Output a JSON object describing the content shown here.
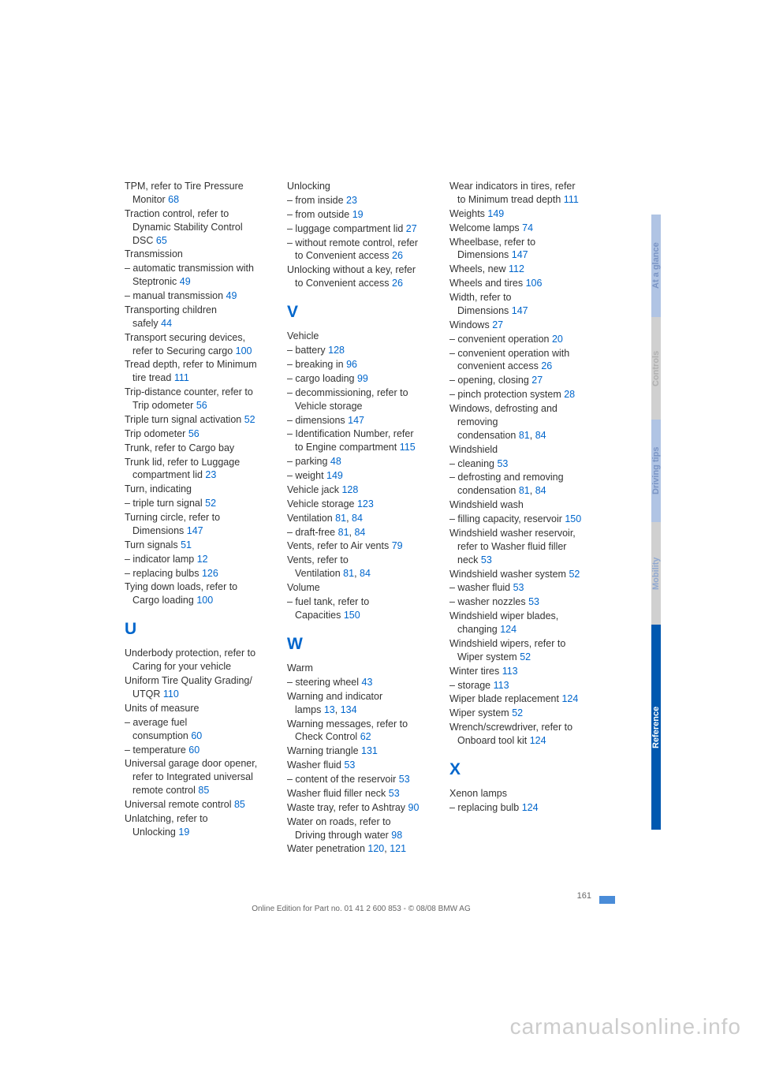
{
  "columns": [
    {
      "blocks": [
        {
          "type": "entries",
          "items": [
            {
              "lines": [
                "TPM, refer to Tire Pressure",
                "Monitor "
              ],
              "ref": "68"
            },
            {
              "lines": [
                "Traction control, refer to",
                "Dynamic Stability Control",
                "DSC "
              ],
              "ref": "65"
            },
            {
              "lines": [
                "Transmission"
              ]
            },
            {
              "lines": [
                "– automatic transmission with",
                "Steptronic "
              ],
              "ref": "49",
              "sub": true
            },
            {
              "lines": [
                "– manual transmission "
              ],
              "ref": "49",
              "sub": true
            },
            {
              "lines": [
                "Transporting children",
                "safely "
              ],
              "ref": "44"
            },
            {
              "lines": [
                "Transport securing devices,",
                "refer to Securing cargo "
              ],
              "ref": "100"
            },
            {
              "lines": [
                "Tread depth, refer to Minimum",
                "tire tread "
              ],
              "ref": "111"
            },
            {
              "lines": [
                "Trip-distance counter, refer to",
                "Trip odometer "
              ],
              "ref": "56"
            },
            {
              "lines": [
                "Triple turn signal activation "
              ],
              "ref": "52"
            },
            {
              "lines": [
                "Trip odometer "
              ],
              "ref": "56"
            },
            {
              "lines": [
                "Trunk, refer to Cargo bay"
              ]
            },
            {
              "lines": [
                "Trunk lid, refer to Luggage",
                "compartment lid "
              ],
              "ref": "23"
            },
            {
              "lines": [
                "Turn, indicating"
              ]
            },
            {
              "lines": [
                "– triple turn signal "
              ],
              "ref": "52",
              "sub": true
            },
            {
              "lines": [
                "Turning circle, refer to",
                "Dimensions "
              ],
              "ref": "147"
            },
            {
              "lines": [
                "Turn signals "
              ],
              "ref": "51"
            },
            {
              "lines": [
                "– indicator lamp "
              ],
              "ref": "12",
              "sub": true
            },
            {
              "lines": [
                "– replacing bulbs "
              ],
              "ref": "126",
              "sub": true
            },
            {
              "lines": [
                "Tying down loads, refer to",
                "Cargo loading "
              ],
              "ref": "100"
            }
          ]
        },
        {
          "type": "letter",
          "text": "U"
        },
        {
          "type": "entries",
          "items": [
            {
              "lines": [
                "Underbody protection, refer to",
                "Caring for your vehicle"
              ]
            },
            {
              "lines": [
                "Uniform Tire Quality Grading/",
                "UTQR "
              ],
              "ref": "110"
            },
            {
              "lines": [
                "Units of measure"
              ]
            },
            {
              "lines": [
                "– average fuel",
                "consumption "
              ],
              "ref": "60",
              "sub": true
            },
            {
              "lines": [
                "– temperature "
              ],
              "ref": "60",
              "sub": true
            },
            {
              "lines": [
                "Universal garage door opener,",
                "refer to Integrated universal",
                "remote control "
              ],
              "ref": "85"
            },
            {
              "lines": [
                "Universal remote control "
              ],
              "ref": "85"
            },
            {
              "lines": [
                "Unlatching, refer to",
                "Unlocking "
              ],
              "ref": "19"
            }
          ]
        }
      ]
    },
    {
      "blocks": [
        {
          "type": "entries",
          "items": [
            {
              "lines": [
                "Unlocking"
              ]
            },
            {
              "lines": [
                "– from inside "
              ],
              "ref": "23",
              "sub": true
            },
            {
              "lines": [
                "– from outside "
              ],
              "ref": "19",
              "sub": true
            },
            {
              "lines": [
                "– luggage compartment lid "
              ],
              "ref": "27",
              "sub": true
            },
            {
              "lines": [
                "– without remote control, refer",
                "to Convenient access "
              ],
              "ref": "26",
              "sub": true
            },
            {
              "lines": [
                "Unlocking without a key, refer",
                "to Convenient access "
              ],
              "ref": "26"
            }
          ]
        },
        {
          "type": "letter",
          "text": "V"
        },
        {
          "type": "entries",
          "items": [
            {
              "lines": [
                "Vehicle"
              ]
            },
            {
              "lines": [
                "– battery "
              ],
              "ref": "128",
              "sub": true
            },
            {
              "lines": [
                "– breaking in "
              ],
              "ref": "96",
              "sub": true
            },
            {
              "lines": [
                "– cargo loading "
              ],
              "ref": "99",
              "sub": true
            },
            {
              "lines": [
                "– decommissioning, refer to",
                "Vehicle storage"
              ],
              "sub": true
            },
            {
              "lines": [
                "– dimensions "
              ],
              "ref": "147",
              "sub": true
            },
            {
              "lines": [
                "– Identification Number, refer",
                "to Engine compartment "
              ],
              "ref": "115",
              "sub": true
            },
            {
              "lines": [
                "– parking "
              ],
              "ref": "48",
              "sub": true
            },
            {
              "lines": [
                "– weight "
              ],
              "ref": "149",
              "sub": true
            },
            {
              "lines": [
                "Vehicle jack "
              ],
              "ref": "128"
            },
            {
              "lines": [
                "Vehicle storage "
              ],
              "ref": "123"
            },
            {
              "lines": [
                "Ventilation "
              ],
              "ref": "81",
              "ref2": "84"
            },
            {
              "lines": [
                "– draft-free "
              ],
              "ref": "81",
              "ref2": "84",
              "sub": true
            },
            {
              "lines": [
                "Vents, refer to Air vents "
              ],
              "ref": "79"
            },
            {
              "lines": [
                "Vents, refer to",
                "Ventilation "
              ],
              "ref": "81",
              "ref2": "84"
            },
            {
              "lines": [
                "Volume"
              ]
            },
            {
              "lines": [
                "– fuel tank, refer to",
                "Capacities "
              ],
              "ref": "150",
              "sub": true
            }
          ]
        },
        {
          "type": "letter",
          "text": "W"
        },
        {
          "type": "entries",
          "items": [
            {
              "lines": [
                "Warm"
              ]
            },
            {
              "lines": [
                "– steering wheel "
              ],
              "ref": "43",
              "sub": true
            },
            {
              "lines": [
                "Warning and indicator",
                "lamps "
              ],
              "ref": "13",
              "ref2": "134"
            },
            {
              "lines": [
                "Warning messages, refer to",
                "Check Control "
              ],
              "ref": "62"
            },
            {
              "lines": [
                "Warning triangle "
              ],
              "ref": "131"
            },
            {
              "lines": [
                "Washer fluid "
              ],
              "ref": "53"
            },
            {
              "lines": [
                "– content of the reservoir "
              ],
              "ref": "53",
              "sub": true
            },
            {
              "lines": [
                "Washer fluid filler neck "
              ],
              "ref": "53"
            },
            {
              "lines": [
                "Waste tray, refer to Ashtray "
              ],
              "ref": "90"
            },
            {
              "lines": [
                "Water on roads, refer to",
                "Driving through water "
              ],
              "ref": "98"
            },
            {
              "lines": [
                "Water penetration "
              ],
              "ref": "120",
              "ref2": "121"
            }
          ]
        }
      ]
    },
    {
      "blocks": [
        {
          "type": "entries",
          "items": [
            {
              "lines": [
                "Wear indicators in tires, refer",
                "to Minimum tread depth "
              ],
              "ref": "111"
            },
            {
              "lines": [
                "Weights "
              ],
              "ref": "149"
            },
            {
              "lines": [
                "Welcome lamps "
              ],
              "ref": "74"
            },
            {
              "lines": [
                "Wheelbase, refer to",
                "Dimensions "
              ],
              "ref": "147"
            },
            {
              "lines": [
                "Wheels, new "
              ],
              "ref": "112"
            },
            {
              "lines": [
                "Wheels and tires "
              ],
              "ref": "106"
            },
            {
              "lines": [
                "Width, refer to",
                "Dimensions "
              ],
              "ref": "147"
            },
            {
              "lines": [
                "Windows "
              ],
              "ref": "27"
            },
            {
              "lines": [
                "– convenient operation "
              ],
              "ref": "20",
              "sub": true
            },
            {
              "lines": [
                "– convenient operation with",
                "convenient access "
              ],
              "ref": "26",
              "sub": true
            },
            {
              "lines": [
                "– opening, closing "
              ],
              "ref": "27",
              "sub": true
            },
            {
              "lines": [
                "– pinch protection system "
              ],
              "ref": "28",
              "sub": true
            },
            {
              "lines": [
                "Windows, defrosting and",
                "removing",
                "condensation "
              ],
              "ref": "81",
              "ref2": "84"
            },
            {
              "lines": [
                "Windshield"
              ]
            },
            {
              "lines": [
                "– cleaning "
              ],
              "ref": "53",
              "sub": true
            },
            {
              "lines": [
                "– defrosting and removing",
                "condensation "
              ],
              "ref": "81",
              "ref2": "84",
              "sub": true
            },
            {
              "lines": [
                "Windshield wash"
              ]
            },
            {
              "lines": [
                "– filling capacity, reservoir "
              ],
              "ref": "150",
              "sub": true
            },
            {
              "lines": [
                "Windshield washer reservoir,",
                "refer to Washer fluid filler",
                "neck "
              ],
              "ref": "53"
            },
            {
              "lines": [
                "Windshield washer system "
              ],
              "ref": "52"
            },
            {
              "lines": [
                "– washer fluid "
              ],
              "ref": "53",
              "sub": true
            },
            {
              "lines": [
                "– washer nozzles "
              ],
              "ref": "53",
              "sub": true
            },
            {
              "lines": [
                "Windshield wiper blades,",
                "changing "
              ],
              "ref": "124"
            },
            {
              "lines": [
                "Windshield wipers, refer to",
                "Wiper system "
              ],
              "ref": "52"
            },
            {
              "lines": [
                "Winter tires "
              ],
              "ref": "113"
            },
            {
              "lines": [
                "– storage "
              ],
              "ref": "113",
              "sub": true
            },
            {
              "lines": [
                "Wiper blade replacement "
              ],
              "ref": "124"
            },
            {
              "lines": [
                "Wiper system "
              ],
              "ref": "52"
            },
            {
              "lines": [
                "Wrench/screwdriver, refer to",
                "Onboard tool kit "
              ],
              "ref": "124"
            }
          ]
        },
        {
          "type": "letter",
          "text": "X"
        },
        {
          "type": "entries",
          "items": [
            {
              "lines": [
                "Xenon lamps"
              ]
            },
            {
              "lines": [
                "– replacing bulb "
              ],
              "ref": "124",
              "sub": true
            }
          ]
        }
      ]
    }
  ],
  "tabs": [
    "At a glance",
    "Controls",
    "Driving tips",
    "Mobility",
    "Reference"
  ],
  "pagenum": "161",
  "footer": "Online Edition for Part no. 01 41 2 600 853 - © 08/08 BMW AG",
  "watermark": "carmanualsonline.info"
}
